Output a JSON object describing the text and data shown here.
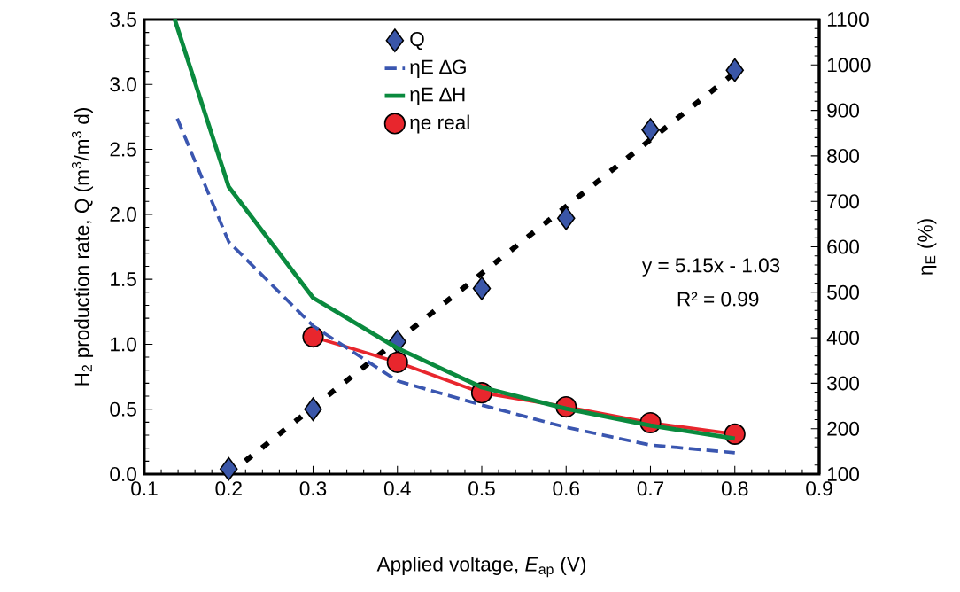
{
  "chart_data": {
    "type": "line",
    "xlabel": "Applied voltage, *E*$_{ap}$ (V)",
    "ylabel": "H$_{2}$ production rate, Q (m$^{3}$/m$^{3}$ d)",
    "y2label": "η$_{E}$ (%)",
    "xlim": [
      0.1,
      0.9
    ],
    "xticks": [
      0.1,
      0.2,
      0.3,
      0.4,
      0.5,
      0.6,
      0.7,
      0.8,
      0.9
    ],
    "ylim": [
      0,
      3.5
    ],
    "yticks": [
      {
        "value": 0,
        "label": "0.0"
      },
      {
        "value": 0.5,
        "label": "0.5"
      },
      {
        "value": 1,
        "label": "1.0"
      },
      {
        "value": 1.5,
        "label": "1.5"
      },
      {
        "value": 2,
        "label": "2.0"
      },
      {
        "value": 2.5,
        "label": "2.5"
      },
      {
        "value": 3,
        "label": "3.0"
      },
      {
        "value": 3.5,
        "label": "3.5"
      }
    ],
    "y2lim": [
      100,
      1100
    ],
    "y2ticks": [
      100,
      200,
      300,
      400,
      500,
      600,
      700,
      800,
      900,
      1000,
      1100
    ],
    "legend": "top",
    "annotations": [
      "y = 5.15x - 1.03",
      "R² = 0.99"
    ],
    "series": [
      {
        "name": "Q",
        "type": "scatter",
        "marker": "diamond",
        "color": "#3a56a8",
        "x": [
          0.2,
          0.3,
          0.4,
          0.5,
          0.6,
          0.7,
          0.8
        ],
        "values": [
          0.04,
          0.5,
          1.02,
          1.43,
          1.97,
          2.65,
          3.11
        ]
      },
      {
        "line_style": "dashed",
        "color": "#000000",
        "x": [
          0.2,
          0.8
        ],
        "values": [
          0.0,
          3.09
        ]
      },
      {
        "name": "ηE ∆G",
        "type": "line",
        "axis": "y2",
        "line_style": "dashed",
        "color": "#3a56b0",
        "x": [
          0.139,
          0.2,
          0.3,
          0.4,
          0.5,
          0.6,
          0.7,
          0.8
        ],
        "values": [
          882,
          611,
          426,
          305,
          252,
          203,
          164,
          147
        ]
      },
      {
        "name": "ηE ∆H",
        "type": "line",
        "axis": "y2",
        "line_style": "solid",
        "color": "#0a8a3e",
        "x": [
          0.136,
          0.2,
          0.3,
          0.4,
          0.5,
          0.6,
          0.7,
          0.8
        ],
        "values": [
          1100,
          732,
          488,
          377,
          291,
          244,
          207,
          178
        ]
      },
      {
        "name": "ηe real",
        "type": "line",
        "axis": "y2",
        "marker": "circle",
        "line_style": "solid",
        "color": "#e8262d",
        "x": [
          0.3,
          0.4,
          0.5,
          0.6,
          0.7,
          0.8
        ],
        "values": [
          402,
          346,
          279,
          248,
          213,
          188
        ]
      }
    ]
  }
}
